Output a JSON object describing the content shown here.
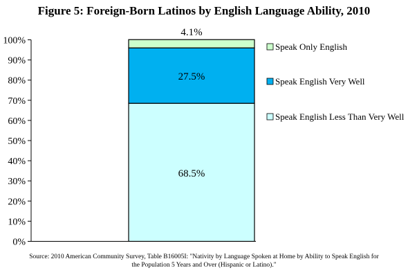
{
  "chart_data": {
    "type": "bar",
    "stacked": true,
    "title": "Figure 5: Foreign-Born Latinos by English Language Ability, 2010",
    "categories": [
      ""
    ],
    "series": [
      {
        "name": "Speak English Less Than Very Well",
        "values": [
          68.5
        ],
        "label": "68.5%",
        "color": "#ccffff"
      },
      {
        "name": "Speak English Very Well",
        "values": [
          27.5
        ],
        "label": "27.5%",
        "color": "#00b0f0"
      },
      {
        "name": "Speak Only English",
        "values": [
          4.1
        ],
        "label": "4.1%",
        "color": "#ccffcc"
      }
    ],
    "ylim": [
      0,
      100
    ],
    "yticks": [
      "0%",
      "10%",
      "20%",
      "30%",
      "40%",
      "50%",
      "60%",
      "70%",
      "80%",
      "90%",
      "100%"
    ],
    "legend_order": [
      "Speak Only English",
      "Speak English Very Well",
      "Speak English Less Than Very Well"
    ],
    "legend_position": "right",
    "grid": false
  },
  "source": {
    "line1": "Source: 2010 American Community Survey, Table B16005I: \"Nativity by Language Spoken at Home by Ability to Speak English for",
    "line2": "the Population 5 Years and Over (Hispanic or Latino).\""
  }
}
